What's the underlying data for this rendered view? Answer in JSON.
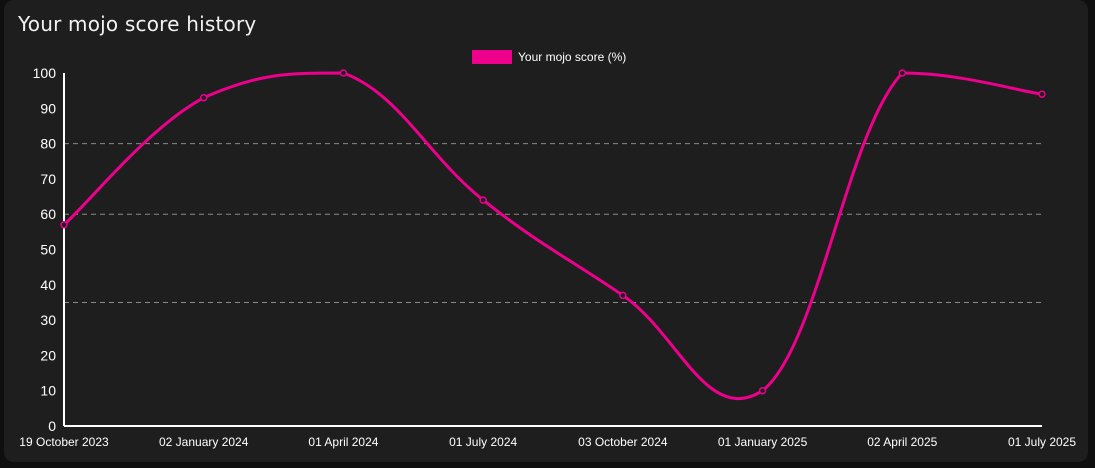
{
  "card": {
    "title": "Your mojo score history"
  },
  "colors": {
    "series": "#ec008c",
    "grid": "#8a8a8a",
    "axis": "#ffffff",
    "background": "#1e1e1e"
  },
  "chart_data": {
    "type": "line",
    "title": "Your mojo score history",
    "x": [
      "19 October 2023",
      "02 January 2024",
      "01 April 2024",
      "01 July 2024",
      "03 October 2024",
      "01 January 2025",
      "02 April 2025",
      "01 July 2025"
    ],
    "series": [
      {
        "name": "Your mojo score (%)",
        "values": [
          57,
          93,
          100,
          64,
          37,
          10,
          100,
          94
        ]
      }
    ],
    "ylim": [
      0,
      100
    ],
    "yticks": [
      0,
      10,
      20,
      30,
      40,
      50,
      60,
      70,
      80,
      90,
      100
    ],
    "dashed_grid_y": [
      35,
      60,
      80
    ],
    "legend": "top-center",
    "xlabel": "",
    "ylabel": ""
  }
}
